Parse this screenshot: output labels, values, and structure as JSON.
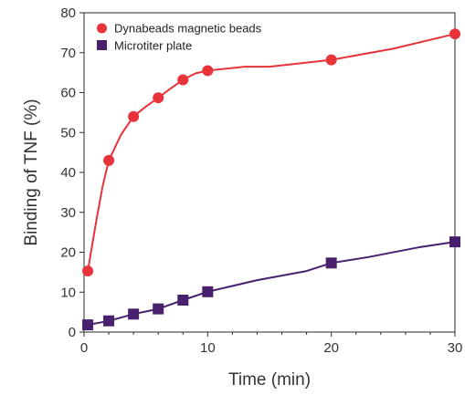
{
  "chart_data": {
    "type": "line",
    "xlabel": "Time (min)",
    "ylabel": "Binding of TNF (%)",
    "xlim": [
      0,
      30
    ],
    "ylim": [
      0,
      80
    ],
    "x_ticks": [
      "0",
      "10",
      "20",
      "30"
    ],
    "y_ticks": [
      "0",
      "10",
      "20",
      "30",
      "40",
      "50",
      "60",
      "70",
      "80"
    ],
    "grid": false,
    "legend_position": "top-left",
    "series": [
      {
        "name": "Dynabeads magnetic beads",
        "color": "#e8333a",
        "marker": "circle",
        "points": [
          {
            "x": 0.3,
            "y": 15.3
          },
          {
            "x": 2,
            "y": 43
          },
          {
            "x": 4,
            "y": 54
          },
          {
            "x": 6,
            "y": 58.7
          },
          {
            "x": 8,
            "y": 63.2
          },
          {
            "x": 10,
            "y": 65.5
          },
          {
            "x": 20,
            "y": 68.2
          },
          {
            "x": 30,
            "y": 74.7
          }
        ],
        "curve": [
          {
            "x": 0.3,
            "y": 15.3
          },
          {
            "x": 1.0,
            "y": 28
          },
          {
            "x": 1.5,
            "y": 36.5
          },
          {
            "x": 2,
            "y": 43
          },
          {
            "x": 3,
            "y": 49.5
          },
          {
            "x": 4,
            "y": 54
          },
          {
            "x": 5,
            "y": 56.5
          },
          {
            "x": 6,
            "y": 58.7
          },
          {
            "x": 7,
            "y": 61.0
          },
          {
            "x": 8,
            "y": 63.2
          },
          {
            "x": 9,
            "y": 64.8
          },
          {
            "x": 10,
            "y": 65.5
          },
          {
            "x": 13,
            "y": 66.5
          },
          {
            "x": 15,
            "y": 66.5
          },
          {
            "x": 20,
            "y": 68.2
          },
          {
            "x": 25,
            "y": 71.0
          },
          {
            "x": 30,
            "y": 74.7
          }
        ]
      },
      {
        "name": "Microtiter plate",
        "color": "#48206e",
        "marker": "square",
        "points": [
          {
            "x": 0.3,
            "y": 1.8
          },
          {
            "x": 2,
            "y": 2.8
          },
          {
            "x": 4,
            "y": 4.5
          },
          {
            "x": 6,
            "y": 5.8
          },
          {
            "x": 8,
            "y": 8.0
          },
          {
            "x": 10,
            "y": 10.1
          },
          {
            "x": 20,
            "y": 17.3
          },
          {
            "x": 30,
            "y": 22.6
          }
        ],
        "curve": [
          {
            "x": 0.3,
            "y": 1.8
          },
          {
            "x": 2,
            "y": 2.8
          },
          {
            "x": 4,
            "y": 4.5
          },
          {
            "x": 6,
            "y": 5.8
          },
          {
            "x": 8,
            "y": 8.0
          },
          {
            "x": 10,
            "y": 10.1
          },
          {
            "x": 14,
            "y": 13.0
          },
          {
            "x": 18,
            "y": 15.3
          },
          {
            "x": 20,
            "y": 17.3
          },
          {
            "x": 23,
            "y": 18.8
          },
          {
            "x": 27,
            "y": 21.2
          },
          {
            "x": 30,
            "y": 22.6
          }
        ]
      }
    ]
  }
}
